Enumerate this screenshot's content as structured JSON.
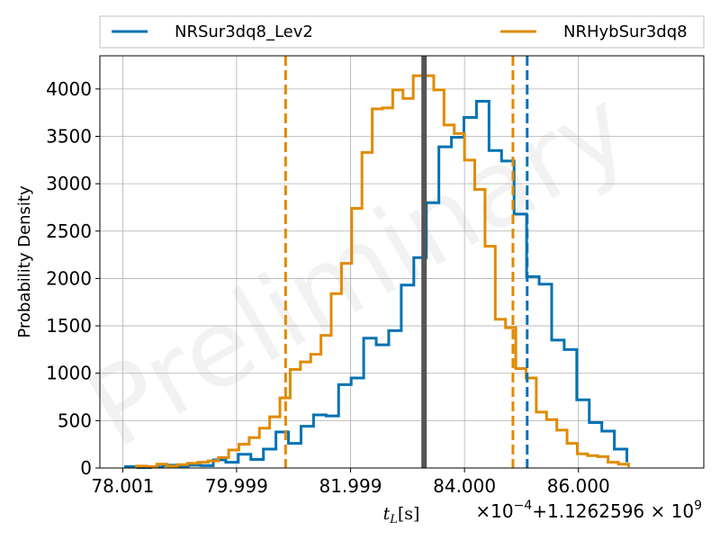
{
  "chart_data": {
    "type": "histogram",
    "ylabel": "Probability Density",
    "xlabel": "t_L[s]",
    "x_offset_label": "×10^-4 + 1.1262596 × 10^9",
    "watermark": "Preliminary",
    "xlim": [
      77.6,
      88.2
    ],
    "ylim": [
      0,
      4350
    ],
    "x_ticks": [
      78.001,
      79.999,
      81.999,
      84.0,
      86.0
    ],
    "x_tick_labels": [
      "78.001",
      "79.999",
      "81.999",
      "84.000",
      "86.000"
    ],
    "y_ticks": [
      0,
      500,
      1000,
      1500,
      2000,
      2500,
      3000,
      3500,
      4000
    ],
    "y_tick_labels": [
      "0",
      "500",
      "1000",
      "1500",
      "2000",
      "2500",
      "3000",
      "3500",
      "4000"
    ],
    "grid": true,
    "legend_position": "top, above axes",
    "true_value": 83.29,
    "true_value_color": "#555555",
    "series": [
      {
        "name": "NRSur3dq8_Lev2",
        "color": "#0072b2",
        "ci_lines": [
          85.1
        ],
        "edges": [
          78.05,
          78.27,
          78.49,
          78.71,
          78.93,
          79.15,
          79.37,
          79.59,
          79.81,
          80.03,
          80.25,
          80.47,
          80.69,
          80.91,
          81.13,
          81.35,
          81.57,
          81.79,
          82.01,
          82.23,
          82.45,
          82.67,
          82.89,
          83.11,
          83.33,
          83.55,
          83.77,
          83.99,
          84.21,
          84.43,
          84.65,
          84.87,
          85.09,
          85.31,
          85.53,
          85.75,
          85.97,
          86.19,
          86.41,
          86.63,
          86.85
        ],
        "values": [
          15,
          5,
          10,
          30,
          20,
          30,
          25,
          85,
          60,
          145,
          90,
          200,
          380,
          260,
          440,
          560,
          550,
          880,
          950,
          1370,
          1300,
          1450,
          1930,
          2220,
          2800,
          3390,
          3490,
          3700,
          3870,
          3350,
          3240,
          2680,
          2020,
          1940,
          1350,
          1250,
          720,
          480,
          390,
          200,
          60
        ]
      },
      {
        "name": "NRHybSur3dq8",
        "color": "#e08b00",
        "ci_lines": [
          80.86,
          84.85
        ],
        "edges": [
          78.24,
          78.42,
          78.6,
          78.78,
          78.96,
          79.14,
          79.32,
          79.5,
          79.68,
          79.86,
          80.04,
          80.22,
          80.4,
          80.58,
          80.76,
          80.94,
          81.12,
          81.3,
          81.48,
          81.66,
          81.84,
          82.02,
          82.2,
          82.38,
          82.56,
          82.74,
          82.92,
          83.1,
          83.28,
          83.46,
          83.64,
          83.82,
          84.0,
          84.18,
          84.36,
          84.54,
          84.72,
          84.9,
          85.08,
          85.26,
          85.44,
          85.62,
          85.8,
          85.98,
          86.16,
          86.34,
          86.52,
          86.7,
          86.88
        ],
        "values": [
          20,
          15,
          40,
          20,
          35,
          50,
          60,
          75,
          110,
          190,
          250,
          320,
          420,
          540,
          740,
          1040,
          1120,
          1200,
          1400,
          1840,
          2160,
          2740,
          3330,
          3790,
          3800,
          3990,
          3900,
          4140,
          4140,
          3990,
          3620,
          3530,
          3250,
          2940,
          2340,
          1570,
          1480,
          1050,
          950,
          590,
          510,
          400,
          260,
          150,
          130,
          120,
          60,
          40,
          10
        ]
      }
    ]
  }
}
